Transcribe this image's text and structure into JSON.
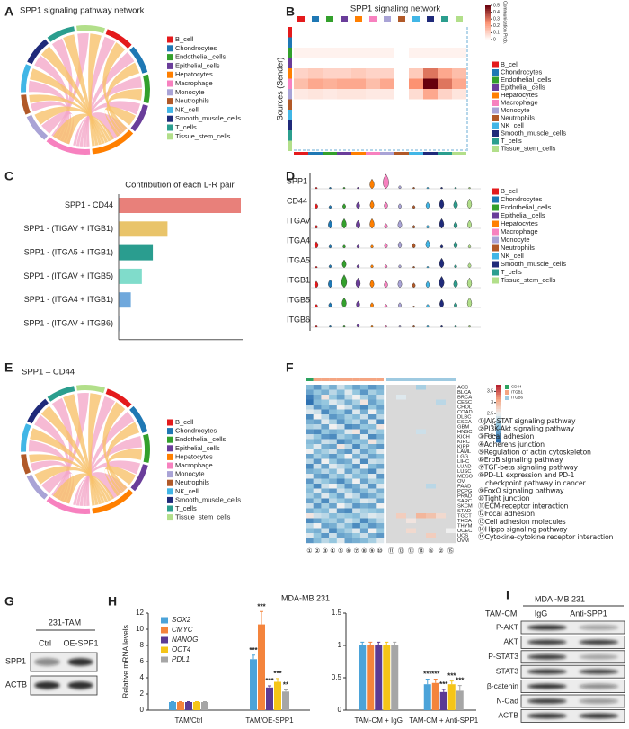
{
  "cell_types": [
    {
      "name": "B_cell",
      "color": "#e41a1c"
    },
    {
      "name": "Chondrocytes",
      "color": "#1f78b4"
    },
    {
      "name": "Endothelial_cells",
      "color": "#33a02c"
    },
    {
      "name": "Epithelial_cells",
      "color": "#6a3d9a"
    },
    {
      "name": "Hepatocytes",
      "color": "#ff7f00"
    },
    {
      "name": "Macrophage",
      "color": "#f781bf"
    },
    {
      "name": "Monocyte",
      "color": "#a9a3d6"
    },
    {
      "name": "Neutrophils",
      "color": "#b15928"
    },
    {
      "name": "NK_cell",
      "color": "#41b6e6"
    },
    {
      "name": "Smooth_muscle_cells",
      "color": "#1f2a7a"
    },
    {
      "name": "T_cells",
      "color": "#2b9e8e"
    },
    {
      "name": "Tissue_stem_cells",
      "color": "#b2df8a"
    }
  ],
  "panel_A": {
    "label": "A",
    "title": "SPP1 signaling pathway network"
  },
  "panel_B": {
    "label": "B",
    "title": "SPP1 signaling network",
    "ylabel": "Sources (Sender)",
    "colorbar_label": "Communication Prob.",
    "colorbar_lim": [
      0,
      0.5
    ],
    "colorbar_ticks": [
      0,
      0.1,
      0.2,
      0.3,
      0.4,
      0.5
    ],
    "matrix": [
      [
        null,
        null,
        null,
        null,
        null,
        null,
        null,
        null,
        null,
        null,
        null,
        null
      ],
      [
        null,
        null,
        null,
        null,
        null,
        null,
        null,
        null,
        null,
        null,
        null,
        null
      ],
      [
        0.03,
        0.03,
        0.03,
        0.03,
        0.03,
        0.03,
        0.03,
        null,
        0.03,
        0.03,
        0.03,
        0.03
      ],
      [
        null,
        null,
        null,
        null,
        null,
        null,
        null,
        null,
        null,
        null,
        null,
        null
      ],
      [
        0.1,
        0.12,
        0.1,
        0.1,
        0.12,
        0.1,
        0.1,
        null,
        0.12,
        0.3,
        0.2,
        0.15
      ],
      [
        0.15,
        0.2,
        0.18,
        0.2,
        0.2,
        0.15,
        0.2,
        null,
        0.25,
        0.5,
        0.3,
        0.2
      ],
      [
        0.05,
        0.06,
        0.05,
        0.06,
        0.06,
        0.05,
        0.05,
        null,
        0.08,
        0.2,
        0.1,
        0.06
      ],
      [
        null,
        null,
        null,
        null,
        null,
        null,
        null,
        null,
        null,
        null,
        null,
        null
      ],
      [
        null,
        null,
        null,
        null,
        null,
        null,
        null,
        null,
        null,
        null,
        null,
        null
      ],
      [
        null,
        null,
        null,
        null,
        null,
        null,
        null,
        null,
        null,
        null,
        null,
        null
      ],
      [
        null,
        null,
        null,
        null,
        null,
        null,
        null,
        null,
        null,
        null,
        null,
        null
      ],
      [
        null,
        null,
        null,
        null,
        null,
        null,
        null,
        null,
        null,
        null,
        null,
        null
      ]
    ]
  },
  "chart_data": [
    {
      "type": "bar",
      "horizontal": true,
      "panel_label": "C",
      "title": "Contribution of each L-R pair",
      "categories": [
        "SPP1 - CD44",
        "SPP1 - (TIGAV + ITGB1)",
        "SPP1 - (ITGA5 + ITGB1)",
        "SPP1 - (ITGAV + ITGB5)",
        "SPP1 - (ITGA4 + ITGB1)",
        "SPP1 - (ITGAV + ITGB6)"
      ],
      "values": [
        1.0,
        0.4,
        0.28,
        0.19,
        0.1,
        0.01
      ],
      "colors": [
        "#e8807a",
        "#e9c46a",
        "#2a9d8f",
        "#80dccb",
        "#6fa8dc",
        "#c6dbef"
      ],
      "xlim": [
        0,
        1
      ]
    },
    {
      "type": "bar",
      "panel_label": "H",
      "title": "MDA-MB 231",
      "ylabel": "Relative mRNA levels",
      "legend": "top-left",
      "categories": [
        "TAM/Ctrl",
        "TAM/OE-SPP1"
      ],
      "ylim": [
        0,
        12
      ],
      "yticks": [
        0,
        2,
        4,
        6,
        8,
        10,
        12
      ],
      "series": [
        {
          "name": "SOX2",
          "color": "#4ba3d9",
          "values": [
            1,
            6.3
          ],
          "errors": [
            0.05,
            0.5
          ],
          "significance": [
            null,
            "***"
          ]
        },
        {
          "name": "CMYC",
          "color": "#f4843c",
          "values": [
            1,
            10.6
          ],
          "errors": [
            0.05,
            1.6
          ],
          "significance": [
            null,
            "***"
          ]
        },
        {
          "name": "NANOG",
          "color": "#5b3a94",
          "values": [
            1,
            2.8
          ],
          "errors": [
            0.05,
            0.2
          ],
          "significance": [
            null,
            "***"
          ]
        },
        {
          "name": "OCT4",
          "color": "#f5c518",
          "values": [
            1,
            3.5
          ],
          "errors": [
            0.05,
            0.4
          ],
          "significance": [
            null,
            "***"
          ]
        },
        {
          "name": "PDL1",
          "color": "#a6a6a6",
          "values": [
            1,
            2.3
          ],
          "errors": [
            0.05,
            0.2
          ],
          "significance": [
            null,
            "**"
          ]
        }
      ]
    },
    {
      "type": "bar",
      "categories": [
        "TAM-CM + IgG",
        "TAM-CM + Anti-SPP1"
      ],
      "ylim": [
        0,
        1.5
      ],
      "yticks": [
        0,
        0.5,
        1,
        1.5
      ],
      "series": [
        {
          "color": "#4ba3d9",
          "values": [
            1,
            0.4
          ],
          "errors": [
            0.05,
            0.08
          ],
          "significance": [
            null,
            "***"
          ]
        },
        {
          "color": "#f4843c",
          "values": [
            1,
            0.42
          ],
          "errors": [
            0.05,
            0.06
          ],
          "significance": [
            null,
            "***"
          ]
        },
        {
          "color": "#5b3a94",
          "values": [
            1,
            0.28
          ],
          "errors": [
            0.05,
            0.04
          ],
          "significance": [
            null,
            "***"
          ]
        },
        {
          "color": "#f5c518",
          "values": [
            1,
            0.4
          ],
          "errors": [
            0.05,
            0.05
          ],
          "significance": [
            null,
            "***"
          ]
        },
        {
          "color": "#a6a6a6",
          "values": [
            1,
            0.3
          ],
          "errors": [
            0.05,
            0.08
          ],
          "significance": [
            null,
            "***"
          ]
        }
      ]
    }
  ],
  "panel_D": {
    "label": "D",
    "genes": [
      "SPP1",
      "CD44",
      "ITGAV",
      "ITGA4",
      "ITGA5",
      "ITGB1",
      "ITGB5",
      "ITGB6"
    ],
    "expression": [
      [
        0.1,
        0.1,
        0.1,
        0.1,
        0.6,
        0.9,
        0.2,
        0.1,
        0.1,
        0.1,
        0.1,
        0.1
      ],
      [
        0.3,
        0.2,
        0.3,
        0.4,
        0.5,
        0.4,
        0.3,
        0.2,
        0.4,
        0.6,
        0.5,
        0.6
      ],
      [
        0.2,
        0.5,
        0.6,
        0.5,
        0.6,
        0.3,
        0.5,
        0.2,
        0.2,
        0.6,
        0.4,
        0.5
      ],
      [
        0.4,
        0.2,
        0.2,
        0.2,
        0.2,
        0.3,
        0.4,
        0.3,
        0.5,
        0.2,
        0.4,
        0.2
      ],
      [
        0.1,
        0.2,
        0.5,
        0.2,
        0.2,
        0.2,
        0.2,
        0.1,
        0.1,
        0.6,
        0.2,
        0.3
      ],
      [
        0.4,
        0.5,
        0.8,
        0.6,
        0.5,
        0.4,
        0.5,
        0.3,
        0.4,
        0.7,
        0.5,
        0.6
      ],
      [
        0.2,
        0.3,
        0.6,
        0.4,
        0.3,
        0.2,
        0.3,
        0.1,
        0.2,
        0.5,
        0.3,
        0.6
      ],
      [
        0.1,
        0.1,
        0.1,
        0.2,
        0.1,
        0.1,
        0.1,
        0.1,
        0.1,
        0.1,
        0.1,
        0.1
      ]
    ]
  },
  "panel_E": {
    "label": "E",
    "title": "SPP1 – CD44"
  },
  "panel_F": {
    "label": "F",
    "legend": [
      {
        "name": "CD44",
        "color": "#2ca25f"
      },
      {
        "name": "ITGB1",
        "color": "#f4a582"
      },
      {
        "name": "ITGB6",
        "color": "#9ecae1"
      }
    ],
    "colorbar_lim": [
      1.2,
      3.8
    ],
    "colorbar_ticks": [
      3.5,
      3,
      2.5,
      2,
      1.5
    ],
    "columns": [
      "①",
      "②",
      "③",
      "④",
      "⑤",
      "⑥",
      "⑦",
      "⑧",
      "⑨",
      "⑩",
      "⑪",
      "⑫",
      "⑬",
      "⑭",
      "⑤",
      "②",
      "⑮"
    ],
    "rows": [
      "ACC",
      "BLCA",
      "BRCA",
      "CESC",
      "CHOL",
      "COAD",
      "DLBC",
      "ESCA",
      "GBM",
      "HNSC",
      "KICH",
      "KIRC",
      "KIRP",
      "LAML",
      "LGG",
      "LIHC",
      "LUAD",
      "LUSC",
      "MESO",
      "OV",
      "PAAD",
      "PCPG",
      "PRAD",
      "SARC",
      "SKCM",
      "STAD",
      "TGCT",
      "THCA",
      "THYM",
      "UCEC",
      "UCS",
      "UVM"
    ],
    "matrix": [
      [
        1.9,
        1.6,
        2.1,
        1.8,
        2.3,
        2.0,
        1.7,
        1.9,
        1.6,
        1.8,
        null,
        null,
        null,
        2.1,
        null,
        null,
        null
      ],
      [
        1.7,
        2.0,
        1.8,
        2.2,
        1.9,
        2.4,
        2.0,
        1.6,
        2.1,
        1.9,
        null,
        null,
        null,
        null,
        null,
        null,
        null
      ],
      [
        1.4,
        1.8,
        2.6,
        2.0,
        1.7,
        2.2,
        2.5,
        2.1,
        1.8,
        2.3,
        null,
        2.4,
        null,
        null,
        null,
        null,
        null
      ],
      [
        1.3,
        1.9,
        2.0,
        2.4,
        2.2,
        1.8,
        2.1,
        2.6,
        1.7,
        2.0,
        null,
        null,
        null,
        null,
        null,
        2.2,
        null
      ],
      [
        2.2,
        1.6,
        1.9,
        1.7,
        2.5,
        2.3,
        1.8,
        1.5,
        2.0,
        1.7,
        null,
        null,
        null,
        null,
        null,
        null,
        null
      ],
      [
        2.4,
        2.3,
        1.5,
        1.9,
        2.0,
        1.6,
        2.4,
        1.8,
        2.5,
        1.9,
        null,
        null,
        null,
        null,
        null,
        null,
        null
      ],
      [
        1.5,
        2.5,
        2.2,
        1.6,
        1.8,
        2.1,
        1.9,
        2.3,
        1.6,
        2.2,
        null,
        null,
        null,
        null,
        null,
        null,
        null
      ],
      [
        1.8,
        1.7,
        2.4,
        2.1,
        1.6,
        2.0,
        2.2,
        1.7,
        2.4,
        1.5,
        null,
        null,
        null,
        null,
        null,
        null,
        null
      ],
      [
        2.1,
        2.2,
        1.7,
        2.5,
        2.3,
        1.5,
        1.6,
        2.0,
        1.9,
        2.6,
        null,
        null,
        null,
        null,
        null,
        null,
        null
      ],
      [
        1.6,
        1.5,
        2.0,
        1.8,
        1.9,
        2.4,
        2.6,
        1.6,
        2.2,
        2.0,
        null,
        null,
        null,
        2.3,
        null,
        null,
        null
      ],
      [
        2.3,
        2.0,
        1.6,
        1.5,
        2.1,
        1.9,
        1.7,
        2.4,
        1.5,
        1.8,
        null,
        null,
        null,
        null,
        null,
        null,
        null
      ],
      [
        1.9,
        1.8,
        2.3,
        2.2,
        1.5,
        1.7,
        2.0,
        1.9,
        2.6,
        2.1,
        null,
        null,
        null,
        null,
        null,
        null,
        null
      ],
      [
        2.0,
        2.4,
        1.8,
        1.7,
        2.6,
        2.2,
        1.5,
        2.1,
        1.8,
        1.6,
        null,
        null,
        null,
        null,
        null,
        null,
        null
      ],
      [
        2.5,
        1.9,
        2.1,
        2.3,
        1.8,
        1.6,
        2.3,
        1.7,
        2.0,
        2.4,
        null,
        null,
        null,
        null,
        null,
        null,
        null
      ],
      [
        1.7,
        2.1,
        1.9,
        1.6,
        2.0,
        2.5,
        1.8,
        2.2,
        1.7,
        1.9,
        null,
        null,
        null,
        null,
        null,
        null,
        null
      ],
      [
        2.2,
        1.6,
        2.5,
        2.0,
        1.7,
        1.8,
        2.4,
        1.5,
        2.3,
        2.2,
        null,
        null,
        null,
        null,
        null,
        null,
        null
      ],
      [
        1.5,
        2.3,
        1.7,
        2.4,
        2.2,
        2.0,
        1.6,
        2.5,
        1.9,
        1.7,
        null,
        null,
        null,
        null,
        null,
        null,
        null
      ],
      [
        1.8,
        1.9,
        2.2,
        1.9,
        2.4,
        1.7,
        2.1,
        1.8,
        1.5,
        2.3,
        null,
        null,
        null,
        null,
        null,
        null,
        null
      ],
      [
        2.4,
        1.7,
        1.6,
        2.1,
        1.9,
        2.3,
        1.9,
        2.0,
        2.4,
        1.6,
        null,
        null,
        null,
        null,
        null,
        null,
        null
      ],
      [
        1.6,
        2.2,
        2.0,
        1.8,
        1.5,
        1.9,
        2.5,
        1.7,
        2.1,
        2.0,
        null,
        null,
        null,
        null,
        null,
        null,
        null
      ],
      [
        2.0,
        1.5,
        2.3,
        2.5,
        2.1,
        1.6,
        1.8,
        2.3,
        1.6,
        2.4,
        null,
        null,
        null,
        null,
        2.2,
        null,
        null
      ],
      [
        1.9,
        2.4,
        1.8,
        1.6,
        2.3,
        2.1,
        1.7,
        1.9,
        2.2,
        1.8,
        null,
        null,
        null,
        null,
        null,
        null,
        null
      ],
      [
        2.1,
        1.8,
        2.4,
        2.0,
        1.7,
        2.4,
        2.2,
        1.6,
        1.8,
        2.1,
        null,
        null,
        null,
        null,
        null,
        null,
        null
      ],
      [
        1.7,
        2.1,
        1.5,
        2.2,
        2.0,
        1.8,
        2.0,
        2.4,
        2.3,
        1.7,
        null,
        null,
        null,
        null,
        null,
        null,
        null
      ],
      [
        2.3,
        1.6,
        2.1,
        1.7,
        2.5,
        2.2,
        1.6,
        1.8,
        1.7,
        2.5,
        null,
        null,
        null,
        null,
        null,
        null,
        null
      ],
      [
        1.8,
        2.0,
        1.9,
        2.4,
        1.6,
        1.5,
        2.3,
        2.1,
        2.0,
        1.9,
        null,
        null,
        null,
        null,
        null,
        null,
        null
      ],
      [
        2.6,
        2.3,
        2.2,
        1.9,
        2.1,
        2.0,
        1.9,
        2.2,
        2.4,
        2.3,
        null,
        2.8,
        null,
        3.0,
        2.9,
        2.7,
        null
      ],
      [
        1.5,
        1.7,
        2.0,
        2.1,
        1.8,
        2.3,
        2.1,
        1.5,
        1.9,
        2.2,
        null,
        null,
        2.6,
        null,
        null,
        null,
        null
      ],
      [
        2.2,
        2.5,
        1.7,
        1.8,
        2.2,
        1.9,
        1.5,
        2.0,
        1.6,
        1.8,
        null,
        null,
        null,
        null,
        null,
        null,
        null
      ],
      [
        1.9,
        1.8,
        2.3,
        1.5,
        1.9,
        2.1,
        2.4,
        1.7,
        2.5,
        2.0,
        null,
        null,
        2.7,
        null,
        null,
        null,
        2.5
      ],
      [
        2.4,
        2.0,
        1.6,
        2.3,
        1.7,
        1.8,
        2.0,
        2.3,
        1.8,
        1.6,
        null,
        null,
        null,
        null,
        2.8,
        null,
        null
      ],
      [
        1.6,
        1.9,
        2.2,
        2.0,
        2.4,
        1.7,
        1.8,
        1.9,
        2.1,
        2.4,
        null,
        null,
        null,
        null,
        null,
        null,
        null
      ]
    ],
    "pathways": [
      "①JAK-STAT signaling pathway",
      "②PI3K-Akt signaling pathway",
      "③Focal adhesion",
      "④Adherens junction",
      "⑤Regulation of actin cytoskeleton",
      "⑥ErbB signaling pathway",
      "⑦TGF-beta signaling pathway",
      [
        "⑧PD-L1 expression and PD-1",
        "checkpoint pathway in cancer"
      ],
      "⑨FoxO signaling pathway",
      "⑩Tight junction",
      "⑪ECM-receptor interaction",
      "⑫Focal adhesion",
      "⑬Cell adhesion molecules",
      "⑭Hippo signaling pathway",
      "⑮Cytokine-cytokine receptor interaction"
    ]
  },
  "panel_G": {
    "label": "G",
    "title": "231-TAM",
    "lanes": [
      "Ctrl",
      "OE-SPP1"
    ],
    "rows": [
      "SPP1",
      "ACTB"
    ]
  },
  "panel_I": {
    "label": "I",
    "title": "MDA -MB 231",
    "treatment": "TAM-CM",
    "lanes": [
      "IgG",
      "Anti-SPP1"
    ],
    "rows": [
      "P-AKT",
      "AKT",
      "P-STAT3",
      "STAT3",
      "β-catenin",
      "N-Cad",
      "ACTB"
    ]
  }
}
